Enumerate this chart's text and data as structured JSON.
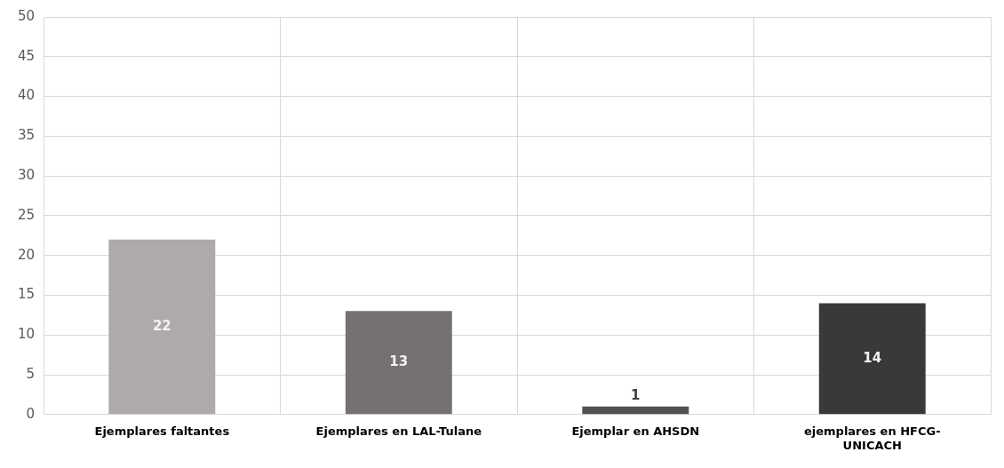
{
  "chart_data": {
    "type": "bar",
    "categories": [
      "Ejemplares faltantes",
      "Ejemplares en LAL-Tulane",
      "Ejemplar en AHSDN",
      "ejemplares en HFCG-UNICACH"
    ],
    "values": [
      22,
      13,
      1,
      14
    ],
    "colors": [
      "#aeaaaa",
      "#767171",
      "#525252",
      "#3b3838"
    ],
    "ylim": [
      0,
      50
    ],
    "yticks": [
      0,
      5,
      10,
      15,
      20,
      25,
      30,
      35,
      40,
      45,
      50
    ],
    "grid": true,
    "data_labels": true
  }
}
